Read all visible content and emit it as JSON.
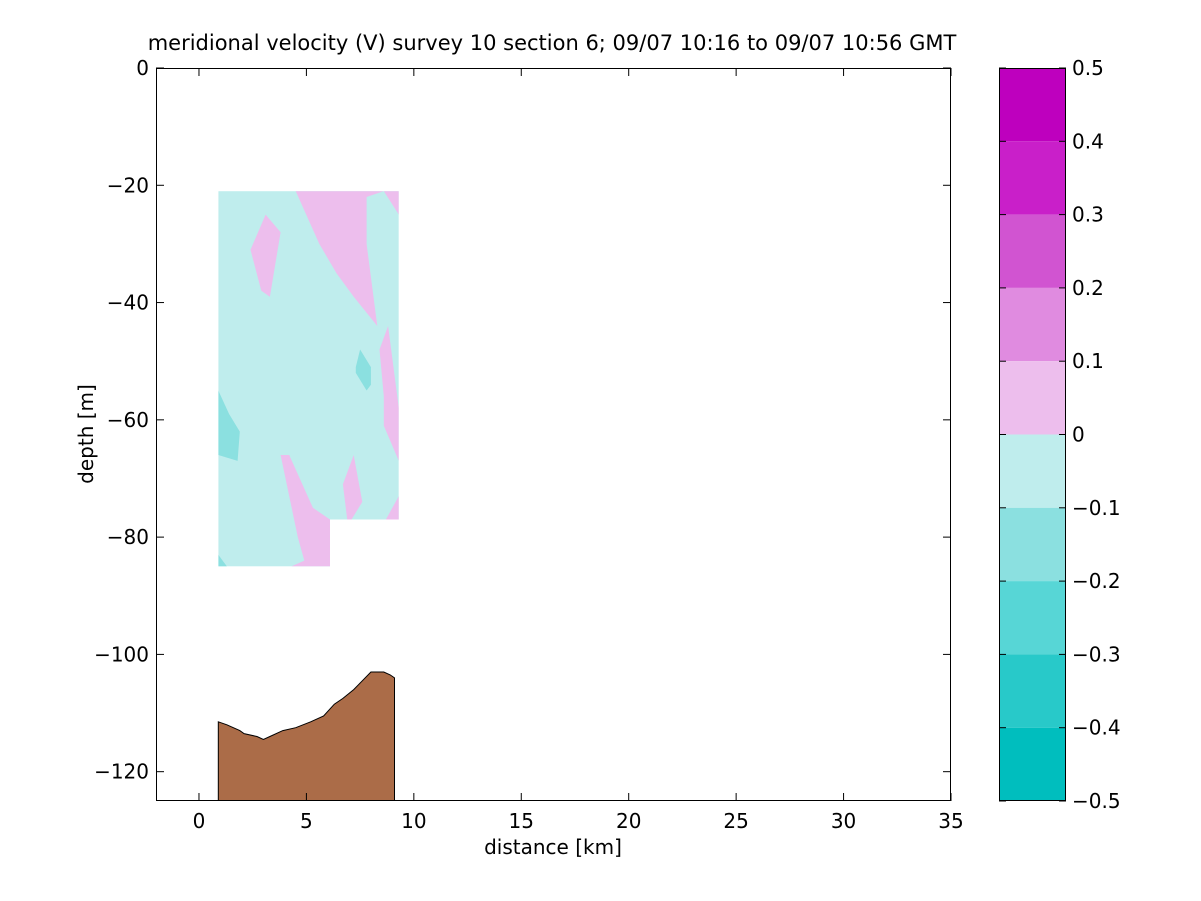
{
  "chart_data": {
    "type": "heatmap",
    "title": "meridional velocity (V) survey 10 section 6; 09/07 10:16 to 09/07 10:56 GMT",
    "xlabel": "distance [km]",
    "ylabel": "depth [m]",
    "xlim": [
      -2,
      35
    ],
    "ylim": [
      -125,
      0
    ],
    "xticks": [
      0,
      5,
      10,
      15,
      20,
      25,
      30,
      35
    ],
    "yticks": [
      0,
      -20,
      -40,
      -60,
      -80,
      -100,
      -120
    ],
    "grid": false,
    "colorbar": {
      "range": [
        -0.5,
        0.5
      ],
      "ticks": [
        0.5,
        0.4,
        0.3,
        0.2,
        0.1,
        0,
        -0.1,
        -0.2,
        -0.3,
        -0.4,
        -0.5
      ],
      "levels": [
        {
          "min": 0.4,
          "max": 0.5,
          "color": "#BE00BE"
        },
        {
          "min": 0.3,
          "max": 0.4,
          "color": "#C91FC9"
        },
        {
          "min": 0.2,
          "max": 0.3,
          "color": "#D154D1"
        },
        {
          "min": 0.1,
          "max": 0.2,
          "color": "#E08BE0"
        },
        {
          "min": 0.0,
          "max": 0.1,
          "color": "#EDBEED"
        },
        {
          "min": -0.1,
          "max": 0.0,
          "color": "#BFEDED"
        },
        {
          "min": -0.2,
          "max": -0.1,
          "color": "#8BE0E0"
        },
        {
          "min": -0.3,
          "max": -0.2,
          "color": "#57D6D6"
        },
        {
          "min": -0.4,
          "max": -0.3,
          "color": "#28C9C9"
        },
        {
          "min": -0.5,
          "max": -0.4,
          "color": "#00BEBE"
        }
      ]
    },
    "data_region": {
      "outline": [
        [
          0.9,
          -21
        ],
        [
          9.3,
          -21
        ],
        [
          9.3,
          -77
        ],
        [
          6.1,
          -77
        ],
        [
          6.1,
          -85
        ],
        [
          0.9,
          -85
        ]
      ],
      "background_color": "#BFEDED",
      "patches": [
        {
          "color": "#EDBEED",
          "points": [
            [
              4.5,
              -21
            ],
            [
              9.3,
              -21
            ],
            [
              9.3,
              -25
            ],
            [
              8.6,
              -21
            ],
            [
              7.8,
              -22
            ],
            [
              7.8,
              -30
            ],
            [
              8.3,
              -44
            ],
            [
              7.2,
              -39
            ],
            [
              6.4,
              -35
            ],
            [
              5.6,
              -30
            ]
          ]
        },
        {
          "color": "#EDBEED",
          "points": [
            [
              2.4,
              -31
            ],
            [
              3.1,
              -25
            ],
            [
              3.8,
              -28
            ],
            [
              3.3,
              -39
            ],
            [
              2.9,
              -38
            ]
          ]
        },
        {
          "color": "#EDBEED",
          "points": [
            [
              8.4,
              -48
            ],
            [
              8.8,
              -44
            ],
            [
              9.3,
              -58
            ],
            [
              9.3,
              -67
            ],
            [
              8.6,
              -61
            ],
            [
              8.6,
              -56
            ]
          ]
        },
        {
          "color": "#EDBEED",
          "points": [
            [
              6.7,
              -71
            ],
            [
              7.2,
              -66
            ],
            [
              7.6,
              -74
            ],
            [
              7.1,
              -77
            ],
            [
              6.9,
              -77
            ]
          ]
        },
        {
          "color": "#EDBEED",
          "points": [
            [
              3.8,
              -66
            ],
            [
              4.2,
              -66
            ],
            [
              5.3,
              -75
            ],
            [
              6.1,
              -77
            ],
            [
              6.1,
              -85
            ],
            [
              4.3,
              -85
            ],
            [
              4.9,
              -84
            ],
            [
              4.6,
              -80
            ]
          ]
        },
        {
          "color": "#EDBEED",
          "points": [
            [
              8.7,
              -77
            ],
            [
              9.3,
              -73
            ],
            [
              9.3,
              -77
            ]
          ]
        },
        {
          "color": "#8BE0E0",
          "points": [
            [
              7.3,
              -51
            ],
            [
              7.5,
              -48
            ],
            [
              8.0,
              -51
            ],
            [
              8.0,
              -54
            ],
            [
              7.8,
              -55
            ],
            [
              7.3,
              -52
            ]
          ]
        },
        {
          "color": "#8BE0E0",
          "points": [
            [
              0.9,
              -55
            ],
            [
              1.4,
              -59
            ],
            [
              1.9,
              -62
            ],
            [
              1.8,
              -67
            ],
            [
              0.9,
              -66
            ]
          ]
        },
        {
          "color": "#8BE0E0",
          "points": [
            [
              0.9,
              -83
            ],
            [
              1.3,
              -85
            ],
            [
              0.9,
              -85
            ]
          ]
        }
      ]
    },
    "bathymetry": {
      "color": "#AB6C48",
      "profile": [
        [
          0.9,
          -111.5
        ],
        [
          1.3,
          -112
        ],
        [
          1.9,
          -113
        ],
        [
          2.1,
          -113.5
        ],
        [
          2.7,
          -114
        ],
        [
          3.0,
          -114.5
        ],
        [
          3.3,
          -114
        ],
        [
          3.9,
          -113
        ],
        [
          4.5,
          -112.5
        ],
        [
          5.2,
          -111.5
        ],
        [
          5.8,
          -110.5
        ],
        [
          6.3,
          -108.5
        ],
        [
          6.7,
          -107.5
        ],
        [
          7.2,
          -106
        ],
        [
          7.6,
          -104.5
        ],
        [
          8.0,
          -103
        ],
        [
          8.6,
          -103
        ],
        [
          8.9,
          -103.5
        ],
        [
          9.1,
          -104
        ],
        [
          9.1,
          -125
        ],
        [
          0.9,
          -125
        ]
      ]
    }
  }
}
